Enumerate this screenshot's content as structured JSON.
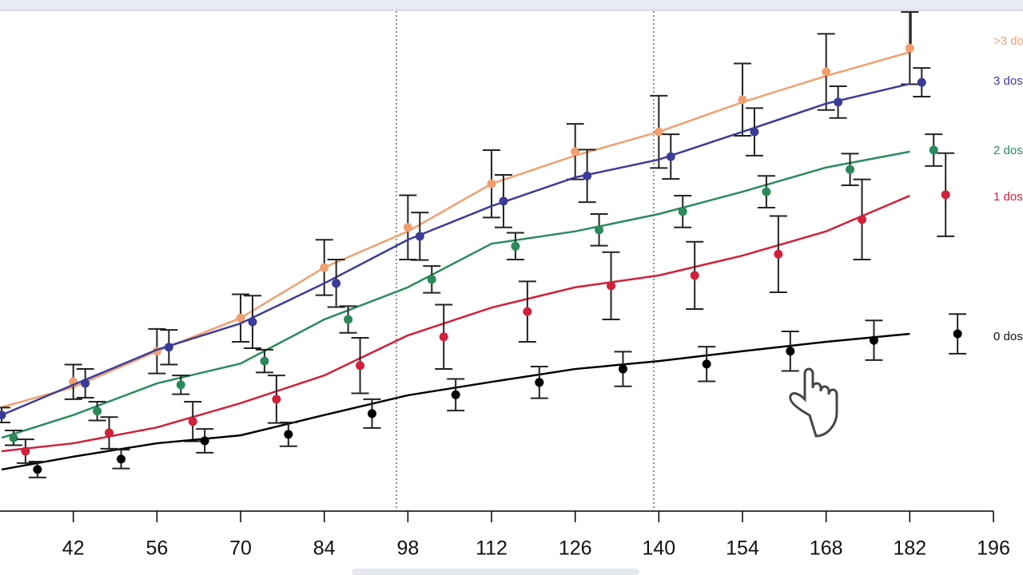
{
  "chart_data": {
    "type": "line",
    "x": [
      30,
      42,
      56,
      70,
      84,
      98,
      112,
      126,
      140,
      154,
      168,
      182
    ],
    "xlim": [
      30,
      196
    ],
    "xticks": [
      42,
      56,
      70,
      84,
      98,
      112,
      126,
      140,
      154,
      168,
      182,
      196
    ],
    "ylim": [
      0,
      100
    ],
    "series": [
      {
        "name": ">3 do",
        "color": "#f0a070",
        "line_values": [
          21.0,
          25.0,
          32.3,
          39.0,
          49.2,
          56.5,
          66.1,
          71.8,
          76.6,
          82.6,
          87.9,
          92.7
        ],
        "points_x": [
          42,
          56,
          70,
          84,
          98,
          112,
          126,
          140,
          154,
          168,
          182
        ],
        "points_values": [
          26.1,
          32.3,
          39.0,
          49.2,
          57.3,
          66.1,
          72.6,
          76.6,
          83.1,
          88.7,
          93.5
        ],
        "errors": [
          3.5,
          4.5,
          4.8,
          5.6,
          6.5,
          6.8,
          5.6,
          7.3,
          7.3,
          7.7,
          7.3
        ]
      },
      {
        "name": "3 dos",
        "color": "#3b3b9a",
        "line_values": [
          19.4,
          25.5,
          32.6,
          37.9,
          46.0,
          54.8,
          61.6,
          67.4,
          71.0,
          76.6,
          82.3,
          86.3
        ],
        "points_x": [
          30,
          44,
          58,
          72,
          86,
          100,
          114,
          128,
          142,
          156,
          170,
          184
        ],
        "points_values": [
          19.4,
          25.8,
          33.1,
          38.2,
          46.0,
          55.5,
          62.6,
          67.7,
          71.6,
          76.6,
          82.6,
          86.6
        ],
        "errors": [
          1.5,
          2.9,
          3.5,
          5.3,
          4.8,
          4.8,
          5.3,
          5.3,
          4.5,
          4.8,
          3.2,
          2.9
        ]
      },
      {
        "name": "2 dos",
        "color": "#2a8a5a",
        "line_values": [
          14.8,
          19.4,
          25.8,
          29.8,
          38.7,
          45.2,
          54.0,
          56.5,
          60.0,
          64.5,
          69.4,
          72.6
        ],
        "points_x": [
          32,
          46,
          60,
          74,
          88,
          102,
          116,
          130,
          144,
          158,
          172,
          186
        ],
        "points_values": [
          14.8,
          20.2,
          25.5,
          30.3,
          38.7,
          46.8,
          53.5,
          56.8,
          60.5,
          64.5,
          69.0,
          72.9
        ],
        "errors": [
          1.5,
          1.9,
          1.9,
          2.3,
          2.7,
          2.7,
          2.7,
          3.2,
          3.2,
          3.2,
          3.2,
          3.2
        ]
      },
      {
        "name": "1 dos",
        "color": "#d0203a",
        "line_values": [
          12.1,
          13.7,
          16.9,
          21.8,
          27.4,
          35.5,
          41.1,
          45.2,
          47.6,
          51.6,
          56.5,
          63.7
        ],
        "points_x": [
          34,
          48,
          62,
          76,
          90,
          104,
          118,
          132,
          146,
          160,
          174,
          188
        ],
        "points_values": [
          12.1,
          15.8,
          18.1,
          22.6,
          29.4,
          35.2,
          40.3,
          45.5,
          47.6,
          51.9,
          58.9,
          63.9
        ],
        "errors": [
          2.4,
          3.2,
          4.0,
          4.8,
          5.6,
          6.5,
          6.1,
          6.8,
          6.8,
          7.7,
          8.1,
          8.4
        ]
      },
      {
        "name": "0 dos",
        "color": "#000000",
        "line_values": [
          8.4,
          11.0,
          13.7,
          15.3,
          19.4,
          23.4,
          26.1,
          28.7,
          30.3,
          32.3,
          34.2,
          35.8
        ],
        "points_x": [
          36,
          50,
          64,
          78,
          92,
          106,
          120,
          134,
          148,
          162,
          176,
          190
        ],
        "points_values": [
          8.4,
          10.5,
          14.2,
          15.5,
          19.7,
          23.5,
          26.0,
          28.7,
          29.7,
          32.3,
          34.5,
          35.8
        ],
        "errors": [
          1.6,
          1.9,
          2.4,
          2.4,
          2.9,
          3.2,
          3.2,
          3.5,
          3.5,
          4.0,
          4.0,
          4.0
        ]
      }
    ]
  }
}
